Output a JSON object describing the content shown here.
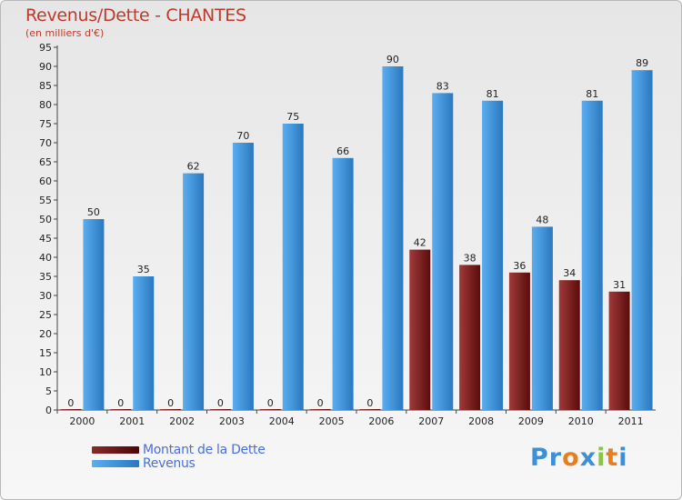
{
  "chart_data": {
    "type": "bar",
    "title": "Revenus/Dette - CHANTES",
    "subtitle": "(en milliers d'€)",
    "categories": [
      "2000",
      "2001",
      "2002",
      "2003",
      "2004",
      "2005",
      "2006",
      "2007",
      "2008",
      "2009",
      "2010",
      "2011"
    ],
    "series": [
      {
        "name": "Montant de la Dette",
        "color": "#7a1a1a",
        "values": [
          0,
          0,
          0,
          0,
          0,
          0,
          0,
          42,
          38,
          36,
          34,
          31
        ]
      },
      {
        "name": "Revenus",
        "color": "#3d8fd6",
        "values": [
          50,
          35,
          62,
          70,
          75,
          66,
          90,
          83,
          81,
          48,
          81,
          89
        ]
      }
    ],
    "ylim": [
      0,
      95
    ],
    "yticks": [
      0,
      5,
      10,
      15,
      20,
      25,
      30,
      35,
      40,
      45,
      50,
      55,
      60,
      65,
      70,
      75,
      80,
      85,
      90,
      95
    ],
    "grid": false,
    "legend_position": "bottom-left"
  },
  "brand": {
    "name": "Proxiti",
    "letters": [
      "P",
      "r",
      "o",
      "x",
      "i",
      "t",
      "i"
    ],
    "letter_colors": [
      "#3d8fd6",
      "#3d8fd6",
      "#e67e22",
      "#3d8fd6",
      "#8bc34a",
      "#e67e22",
      "#3d8fd6"
    ]
  }
}
